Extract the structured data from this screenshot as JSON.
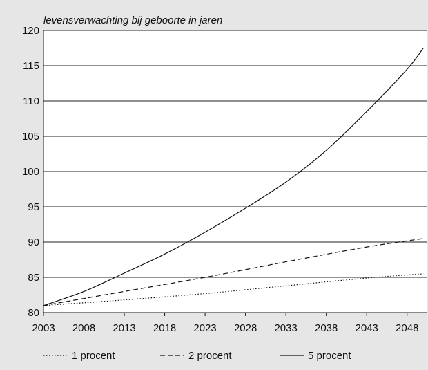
{
  "chart_data": {
    "type": "line",
    "ylabel": "levensverwachting bij geboorte in jaren",
    "xlabel": "",
    "xlim": [
      2003,
      2050.5
    ],
    "ylim": [
      80,
      120
    ],
    "x_ticks": [
      2003,
      2008,
      2013,
      2018,
      2023,
      2028,
      2033,
      2038,
      2043,
      2048
    ],
    "y_ticks": [
      80,
      85,
      90,
      95,
      100,
      105,
      110,
      115,
      120
    ],
    "grid": "horizontal",
    "legend_position": "bottom",
    "series": [
      {
        "name": "1 procent",
        "style": "dotted",
        "x": [
          2003,
          2013,
          2023,
          2033,
          2043,
          2050
        ],
        "y": [
          81.0,
          81.8,
          82.7,
          83.8,
          84.9,
          85.5
        ]
      },
      {
        "name": "2 procent",
        "style": "dashed",
        "x": [
          2003,
          2013,
          2023,
          2033,
          2043,
          2050
        ],
        "y": [
          81.0,
          83.0,
          85.0,
          87.2,
          89.3,
          90.5
        ]
      },
      {
        "name": "5 procent",
        "style": "solid",
        "x": [
          2003,
          2008,
          2013,
          2018,
          2023,
          2028,
          2033,
          2038,
          2043,
          2048,
          2050
        ],
        "y": [
          81.0,
          83.0,
          85.6,
          88.3,
          91.4,
          94.8,
          98.5,
          103.0,
          108.5,
          114.5,
          117.5
        ]
      }
    ]
  }
}
